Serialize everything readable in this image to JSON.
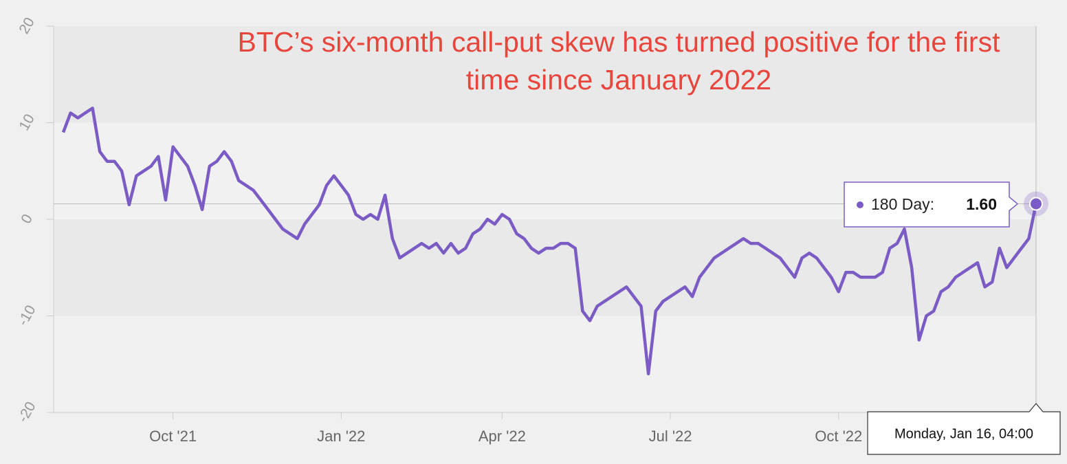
{
  "chart_data": {
    "type": "line",
    "title": "BTC’s six-month call-put skew has turned positive for the first time since January 2022",
    "categories": [
      null,
      null,
      null,
      null,
      null,
      null,
      null,
      null,
      null,
      null,
      null,
      null,
      null,
      null,
      null,
      "Oct '21",
      null,
      null,
      null,
      null,
      null,
      null,
      null,
      null,
      null,
      null,
      null,
      null,
      null,
      null,
      null,
      null,
      null,
      null,
      null,
      null,
      null,
      null,
      "Jan '22",
      null,
      null,
      null,
      null,
      null,
      null,
      null,
      null,
      null,
      null,
      null,
      null,
      null,
      null,
      null,
      null,
      null,
      null,
      null,
      null,
      null,
      "Apr '22",
      null,
      null,
      null,
      null,
      null,
      null,
      null,
      null,
      null,
      null,
      null,
      null,
      null,
      null,
      null,
      null,
      null,
      null,
      null,
      null,
      null,
      null,
      "Jul '22",
      null,
      null,
      null,
      null,
      null,
      null,
      null,
      null,
      null,
      null,
      null,
      null,
      null,
      null,
      null,
      null,
      null,
      null,
      null,
      null,
      null,
      null,
      "Oct '22",
      null,
      null,
      null,
      null,
      null,
      null,
      null,
      null,
      null,
      null,
      null,
      null,
      null,
      null,
      null,
      null,
      null,
      null,
      null,
      null,
      null,
      null,
      null,
      null,
      null,
      null,
      null
    ],
    "series": [
      {
        "color": "#7b5cc4",
        "values": [
          9,
          11,
          10.5,
          11,
          11.5,
          7,
          6,
          6,
          5,
          1.5,
          4.5,
          5,
          5.5,
          6.5,
          2,
          7.5,
          6.5,
          5.5,
          3.5,
          1,
          5.5,
          6,
          7,
          6,
          4,
          3.5,
          3,
          2,
          1,
          0,
          -1,
          -1.5,
          -2,
          -0.5,
          0.5,
          1.5,
          3.5,
          4.5,
          3.5,
          2.5,
          0.5,
          0,
          0.5,
          0,
          2.5,
          -2,
          -4,
          -3.5,
          -3,
          -2.5,
          -3,
          -2.5,
          -3.5,
          -2.5,
          -3.5,
          -3,
          -1.5,
          -1,
          0,
          -0.5,
          0.5,
          0,
          -1.5,
          -2,
          -3,
          -3.5,
          -3,
          -3,
          -2.5,
          -2.5,
          -3,
          -9.5,
          -10.5,
          -9,
          -8.5,
          -8,
          -7.5,
          -7,
          -8,
          -9,
          -16,
          -9.5,
          -8.5,
          -8,
          -7.5,
          -7,
          -8,
          -6,
          -5,
          -4,
          -3.5,
          -3,
          -2.5,
          -2,
          -2.5,
          -2.5,
          -3,
          -3.5,
          -4,
          -5,
          -6,
          -4,
          -3.5,
          -4,
          -5,
          -6,
          -7.5,
          -5.5,
          -5.5,
          -6,
          -6,
          -6,
          -5.5,
          -3,
          -2.5,
          -1,
          -5,
          -12.5,
          -10,
          -9.5,
          -7.5,
          -7,
          -6,
          -5.5,
          -5,
          -4.5,
          -7,
          -6.5,
          -3,
          -5,
          -4,
          -3,
          -2,
          1.6
        ]
      }
    ],
    "ylim": [
      -20,
      20
    ],
    "yticks": [
      -20,
      -10,
      0,
      10,
      20
    ],
    "tooltip": {
      "series_label": "180 Day:",
      "value_label": "1.60",
      "date": "Monday, Jan 16, 04:00"
    }
  }
}
